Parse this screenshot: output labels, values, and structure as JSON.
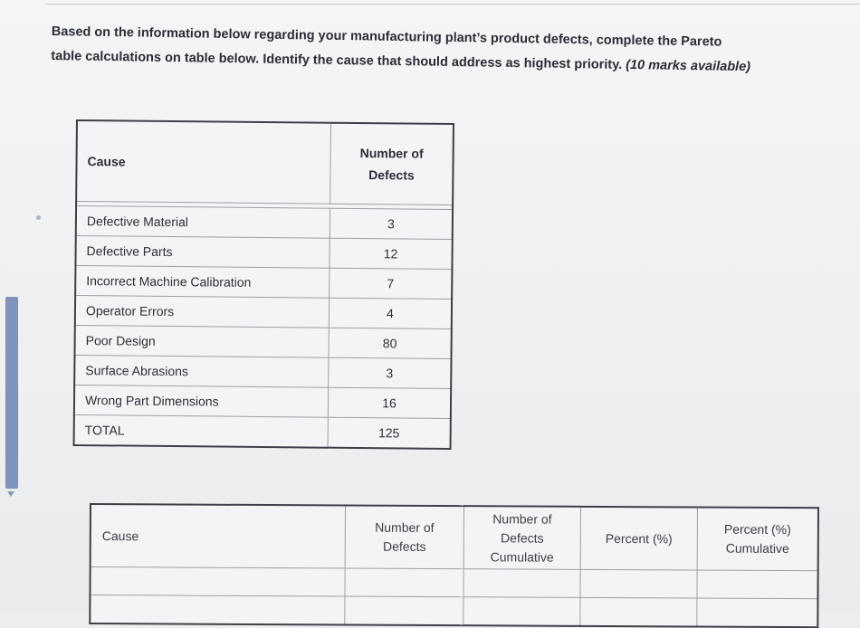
{
  "instructions": {
    "line1": "Based on the information below regarding your manufacturing plant’s product defects, complete the Pareto",
    "line2": "table calculations on table below. Identify the cause that should address as highest priority.",
    "marks": "(10 marks available)"
  },
  "defects_table": {
    "headers": {
      "cause": "Cause",
      "number_line1": "Number of",
      "number_line2": "Defects"
    },
    "rows": [
      {
        "cause": "Defective Material",
        "count": "3"
      },
      {
        "cause": "Defective Parts",
        "count": "12"
      },
      {
        "cause": "Incorrect Machine Calibration",
        "count": "7"
      },
      {
        "cause": "Operator Errors",
        "count": "4"
      },
      {
        "cause": "Poor Design",
        "count": "80"
      },
      {
        "cause": "Surface Abrasions",
        "count": "3"
      },
      {
        "cause": "Wrong Part Dimensions",
        "count": "16"
      },
      {
        "cause": "TOTAL",
        "count": "125"
      }
    ]
  },
  "pareto_table": {
    "headers": {
      "cause": "Cause",
      "number_line1": "Number of",
      "number_line2": "Defects",
      "cumulative_line1": "Number of",
      "cumulative_line2": "Defects",
      "cumulative_line3": "Cumulative",
      "percent": "Percent (%)",
      "percent_cum_line1": "Percent (%)",
      "percent_cum_line2": "Cumulative"
    }
  }
}
